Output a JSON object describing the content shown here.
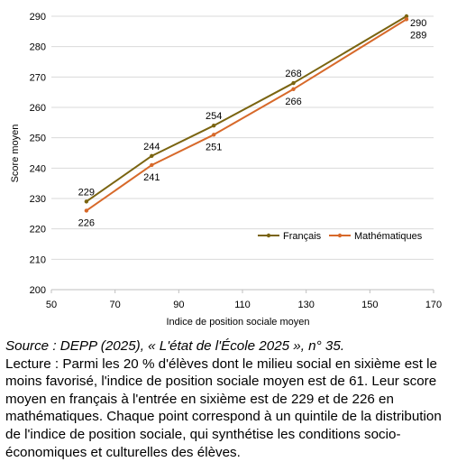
{
  "chart_data": {
    "type": "line",
    "title": "",
    "xlabel": "Indice de position sociale moyen",
    "ylabel": "Score moyen",
    "xlim": [
      50,
      170
    ],
    "ylim": [
      200,
      290
    ],
    "xticks": [
      50,
      70,
      90,
      110,
      130,
      150,
      170
    ],
    "yticks": [
      200,
      210,
      220,
      230,
      240,
      250,
      260,
      270,
      280,
      290
    ],
    "grid": "horizontal",
    "legend_position": "inside-right",
    "series": [
      {
        "name": "Français",
        "color": "#7a6410",
        "points": [
          [
            61,
            229
          ],
          [
            81.5,
            244
          ],
          [
            101,
            254
          ],
          [
            126,
            268
          ],
          [
            161.5,
            290
          ]
        ],
        "labels": [
          "229",
          "244",
          "254",
          "268",
          "290"
        ],
        "label_side": "above"
      },
      {
        "name": "Mathématiques",
        "color": "#d7692a",
        "points": [
          [
            61,
            226
          ],
          [
            81.5,
            241
          ],
          [
            101,
            251
          ],
          [
            126,
            266
          ],
          [
            161.5,
            289
          ]
        ],
        "labels": [
          "226",
          "241",
          "251",
          "266",
          "289"
        ],
        "label_side": "below"
      }
    ]
  },
  "caption": {
    "source": "Source : DEPP (2025), « L'état de l'École 2025 », n° 35.",
    "lecture": "Lecture : Parmi les 20 % d'élèves dont le milieu social en sixième est le moins favorisé, l'indice de position sociale moyen est de 61. Leur score moyen en français à l'entrée en sixième est de 229 et de 226 en mathématiques. Chaque point correspond à un quintile de la distribution de l'indice de position sociale, qui synthétise les conditions socio-économiques et culturelles des élèves."
  }
}
